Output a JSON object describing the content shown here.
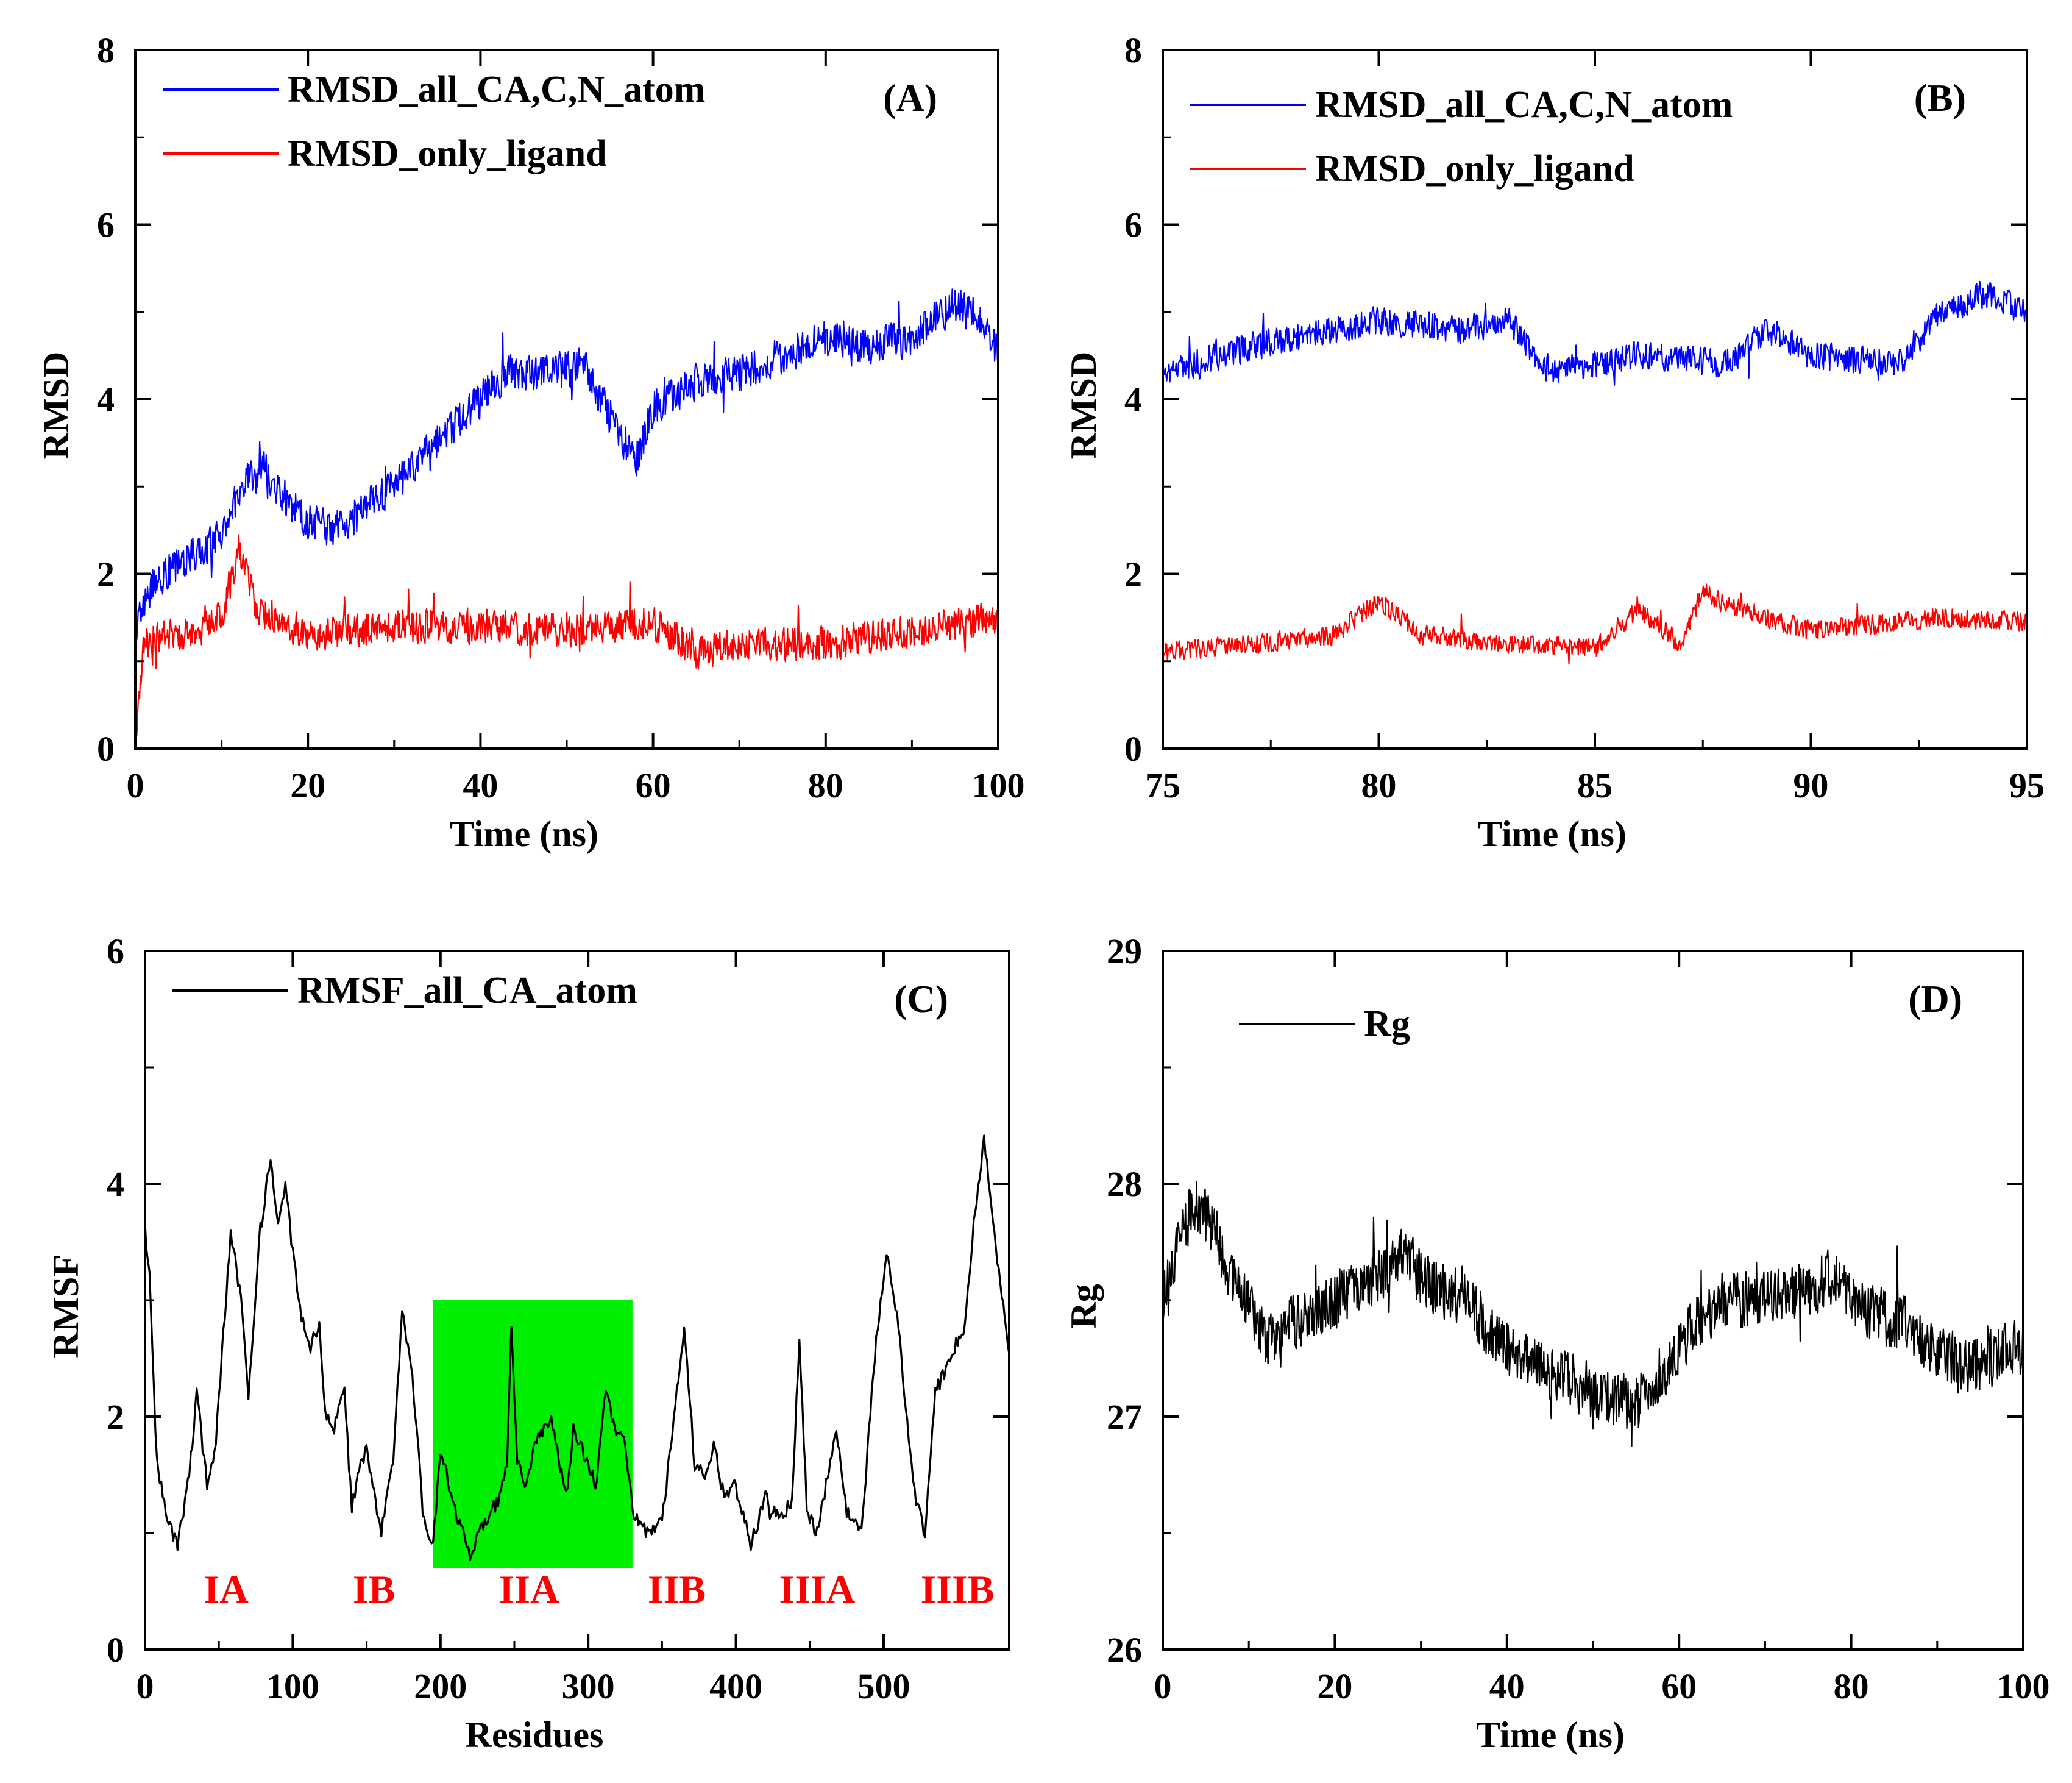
{
  "chart_data": [
    {
      "id": "A",
      "type": "line",
      "panel_label": "(A)",
      "xlabel": "Time (ns)",
      "ylabel": "RMSD",
      "xlim": [
        0,
        100
      ],
      "ylim": [
        0,
        8
      ],
      "xticks": [
        0,
        20,
        40,
        60,
        80,
        100
      ],
      "yticks": [
        0,
        2,
        4,
        6,
        8
      ],
      "legend": "top-left",
      "series": [
        {
          "name": "RMSD_all_CA,C,N_atom",
          "color": "#0000ff",
          "noise": 0.26,
          "samples": 1200,
          "x": [
            0,
            2,
            5,
            8,
            11,
            12,
            15,
            18,
            20,
            23,
            26,
            30,
            35,
            40,
            43,
            48,
            52,
            55,
            58,
            60,
            65,
            70,
            75,
            80,
            85,
            90,
            95,
            98,
            100
          ],
          "y": [
            1.4,
            1.9,
            2.1,
            2.3,
            2.6,
            3.0,
            3.2,
            2.8,
            2.6,
            2.5,
            2.7,
            3.0,
            3.5,
            4.0,
            4.3,
            4.3,
            4.4,
            3.8,
            3.3,
            3.9,
            4.2,
            4.3,
            4.5,
            4.7,
            4.6,
            4.7,
            5.1,
            4.9,
            4.5
          ]
        },
        {
          "name": "RMSD_only_ligand",
          "color": "#ff0000",
          "noise": 0.24,
          "samples": 1200,
          "x": [
            0,
            1,
            3,
            6,
            10,
            12,
            14,
            20,
            30,
            40,
            50,
            60,
            65,
            70,
            80,
            90,
            100
          ],
          "y": [
            0.1,
            1.2,
            1.3,
            1.3,
            1.5,
            2.3,
            1.6,
            1.3,
            1.4,
            1.4,
            1.35,
            1.45,
            1.1,
            1.2,
            1.2,
            1.35,
            1.5
          ]
        }
      ]
    },
    {
      "id": "B",
      "type": "line",
      "panel_label": "(B)",
      "xlabel": "Time (ns)",
      "ylabel": "RMSD",
      "xlim": [
        75,
        95
      ],
      "ylim": [
        0,
        8
      ],
      "xticks": [
        75,
        80,
        85,
        90,
        95
      ],
      "yticks": [
        0,
        2,
        4,
        6,
        8
      ],
      "legend": "top-left",
      "series": [
        {
          "name": "RMSD_all_CA,C,N_atom",
          "color": "#0000ff",
          "noise": 0.2,
          "samples": 1100,
          "x": [
            75,
            77,
            79,
            80,
            82,
            83,
            84,
            86,
            88,
            89,
            90,
            92,
            93,
            94,
            95
          ],
          "y": [
            4.3,
            4.6,
            4.8,
            4.9,
            4.8,
            4.9,
            4.3,
            4.5,
            4.4,
            4.8,
            4.5,
            4.4,
            5.0,
            5.2,
            5.0
          ]
        },
        {
          "name": "RMSD_only_ligand",
          "color": "#ff0000",
          "noise": 0.14,
          "samples": 1100,
          "x": [
            75,
            77,
            79,
            80,
            81,
            83,
            85,
            86,
            87,
            87.5,
            88,
            89,
            90,
            92,
            93,
            95
          ],
          "y": [
            1.1,
            1.2,
            1.3,
            1.7,
            1.3,
            1.2,
            1.15,
            1.6,
            1.2,
            1.8,
            1.65,
            1.5,
            1.35,
            1.45,
            1.5,
            1.45
          ]
        }
      ]
    },
    {
      "id": "C",
      "type": "line",
      "panel_label": "(C)",
      "xlabel": "Residues",
      "ylabel": "RMSF",
      "xlim": [
        0,
        585
      ],
      "ylim": [
        0,
        6
      ],
      "xticks": [
        0,
        100,
        200,
        300,
        400,
        500
      ],
      "yticks": [
        0,
        2,
        4,
        6
      ],
      "legend": "top-left",
      "highlight": {
        "x_range": [
          195,
          330
        ],
        "y_range": [
          0.7,
          3.0
        ],
        "color": "#00ee00"
      },
      "domain_labels": [
        {
          "text": "IA",
          "x": 55
        },
        {
          "text": "IB",
          "x": 155
        },
        {
          "text": "IIA",
          "x": 260
        },
        {
          "text": "IIB",
          "x": 360
        },
        {
          "text": "IIIA",
          "x": 455
        },
        {
          "text": "IIIB",
          "x": 550
        }
      ],
      "domain_label_color": "#ff0000",
      "series": [
        {
          "name": "RMSF_all_CA_atom",
          "color": "#000000",
          "noise": 0.08,
          "samples": 585,
          "x": [
            0,
            3,
            8,
            15,
            22,
            30,
            35,
            42,
            48,
            58,
            65,
            70,
            78,
            85,
            90,
            95,
            100,
            105,
            112,
            118,
            122,
            128,
            135,
            140,
            145,
            150,
            160,
            168,
            174,
            180,
            188,
            195,
            200,
            210,
            220,
            230,
            240,
            245,
            248,
            252,
            258,
            265,
            275,
            285,
            290,
            300,
            305,
            312,
            318,
            325,
            330,
            340,
            350,
            358,
            365,
            372,
            380,
            385,
            392,
            400,
            410,
            420,
            430,
            438,
            443,
            448,
            455,
            462,
            468,
            475,
            485,
            495,
            502,
            510,
            520,
            528,
            535,
            545,
            555,
            562,
            568,
            575,
            580,
            585
          ],
          "y": [
            3.6,
            3.2,
            1.6,
            1.1,
            0.9,
            1.5,
            2.2,
            1.4,
            1.8,
            3.6,
            3.0,
            2.2,
            3.6,
            4.2,
            3.6,
            4.0,
            3.4,
            2.9,
            2.6,
            2.8,
            2.0,
            1.9,
            2.2,
            1.2,
            1.6,
            1.7,
            1.0,
            1.6,
            2.9,
            2.5,
            1.2,
            0.9,
            1.7,
            1.2,
            0.8,
            1.1,
            1.3,
            1.6,
            2.8,
            1.6,
            1.4,
            1.8,
            2.0,
            1.3,
            1.9,
            1.6,
            1.4,
            2.2,
            1.9,
            1.8,
            1.2,
            1.0,
            1.1,
            2.0,
            2.8,
            1.6,
            1.5,
            1.8,
            1.3,
            1.4,
            0.9,
            1.3,
            1.1,
            1.3,
            2.7,
            1.2,
            1.0,
            1.5,
            1.9,
            1.2,
            1.0,
            2.7,
            3.4,
            2.8,
            1.4,
            1.0,
            2.2,
            2.5,
            2.8,
            3.8,
            4.4,
            3.6,
            3.0,
            2.6
          ]
        }
      ]
    },
    {
      "id": "D",
      "type": "line",
      "panel_label": "(D)",
      "xlabel": "Time (ns)",
      "ylabel": "Rg",
      "xlim": [
        0,
        100
      ],
      "ylim": [
        26,
        29
      ],
      "xticks": [
        0,
        20,
        40,
        60,
        80,
        100
      ],
      "yticks": [
        26,
        27,
        28,
        29
      ],
      "legend": "top-left",
      "series": [
        {
          "name": "Rg",
          "color": "#000000",
          "noise": 0.15,
          "samples": 1400,
          "x": [
            0,
            2,
            4,
            6,
            8,
            10,
            12,
            15,
            20,
            25,
            28,
            30,
            35,
            40,
            45,
            50,
            55,
            58,
            62,
            65,
            70,
            75,
            78,
            82,
            86,
            90,
            93,
            96,
            100
          ],
          "y": [
            27.5,
            27.8,
            27.9,
            27.8,
            27.6,
            27.5,
            27.3,
            27.4,
            27.5,
            27.6,
            27.7,
            27.6,
            27.5,
            27.3,
            27.2,
            27.1,
            27.05,
            27.2,
            27.4,
            27.5,
            27.5,
            27.55,
            27.6,
            27.45,
            27.4,
            27.3,
            27.2,
            27.25,
            27.3
          ]
        }
      ]
    }
  ]
}
